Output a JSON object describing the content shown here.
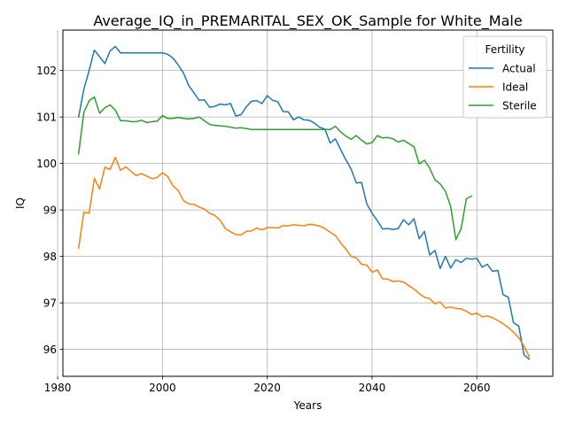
{
  "chart_data": {
    "type": "line",
    "title": "Average_IQ_in_PREMARITAL_SEX_OK_Sample for White_Male",
    "xlabel": "Years",
    "ylabel": "IQ",
    "xlim": [
      1981,
      2074.5
    ],
    "ylim": [
      95.42,
      102.87
    ],
    "xticks": [
      1980,
      2000,
      2020,
      2040,
      2060
    ],
    "yticks": [
      96,
      97,
      98,
      99,
      100,
      101,
      102
    ],
    "grid": true,
    "legend": {
      "title": "Fertility",
      "placement": "top-right"
    },
    "series": [
      {
        "name": "Actual",
        "color": "#1f77b4",
        "x": [
          1984,
          1985,
          1986,
          1987,
          1988,
          1989,
          1990,
          1991,
          1992,
          1993,
          1994,
          1995,
          1996,
          1997,
          1998,
          1999,
          2000,
          2001,
          2002,
          2003,
          2004,
          2005,
          2006,
          2007,
          2008,
          2009,
          2010,
          2011,
          2012,
          2013,
          2014,
          2015,
          2016,
          2017,
          2018,
          2019,
          2020,
          2021,
          2022,
          2023,
          2024,
          2025,
          2026,
          2027,
          2028,
          2029,
          2030,
          2031,
          2032,
          2033,
          2034,
          2035,
          2036,
          2037,
          2038,
          2039,
          2040,
          2041,
          2042,
          2043,
          2044,
          2045,
          2046,
          2047,
          2048,
          2049,
          2050,
          2051,
          2052,
          2053,
          2054,
          2055,
          2056,
          2057,
          2058,
          2059,
          2060,
          2061,
          2062,
          2063,
          2064,
          2065,
          2066,
          2067,
          2068,
          2069,
          2070
        ],
        "y": [
          101.0,
          101.6,
          102.0,
          102.44,
          102.3,
          102.15,
          102.42,
          102.52,
          102.38,
          102.38,
          102.38,
          102.38,
          102.38,
          102.38,
          102.38,
          102.38,
          102.38,
          102.35,
          102.27,
          102.12,
          101.95,
          101.68,
          101.52,
          101.36,
          101.37,
          101.21,
          101.23,
          101.28,
          101.26,
          101.29,
          101.02,
          101.05,
          101.22,
          101.34,
          101.35,
          101.29,
          101.46,
          101.36,
          101.33,
          101.12,
          101.11,
          100.94,
          101.0,
          100.94,
          100.93,
          100.87,
          100.78,
          100.74,
          100.44,
          100.53,
          100.3,
          100.08,
          99.88,
          99.58,
          99.59,
          99.13,
          98.93,
          98.77,
          98.59,
          98.6,
          98.58,
          98.6,
          98.79,
          98.68,
          98.81,
          98.38,
          98.54,
          98.03,
          98.13,
          97.74,
          98.0,
          97.75,
          97.93,
          97.87,
          97.96,
          97.94,
          97.96,
          97.77,
          97.83,
          97.68,
          97.7,
          97.18,
          97.12,
          96.57,
          96.5,
          95.88,
          95.79
        ]
      },
      {
        "name": "Ideal",
        "color": "#ff7f0e",
        "x": [
          1984,
          1985,
          1986,
          1987,
          1988,
          1989,
          1990,
          1991,
          1992,
          1993,
          1994,
          1995,
          1996,
          1997,
          1998,
          1999,
          2000,
          2001,
          2002,
          2003,
          2004,
          2005,
          2006,
          2007,
          2008,
          2009,
          2010,
          2011,
          2012,
          2013,
          2014,
          2015,
          2016,
          2017,
          2018,
          2019,
          2020,
          2021,
          2022,
          2023,
          2024,
          2025,
          2026,
          2027,
          2028,
          2029,
          2030,
          2031,
          2032,
          2033,
          2034,
          2035,
          2036,
          2037,
          2038,
          2039,
          2040,
          2041,
          2042,
          2043,
          2044,
          2045,
          2046,
          2047,
          2048,
          2049,
          2050,
          2051,
          2052,
          2053,
          2054,
          2055,
          2056,
          2057,
          2058,
          2059,
          2060,
          2061,
          2062,
          2063,
          2064,
          2065,
          2066,
          2067,
          2068,
          2069,
          2070
        ],
        "y": [
          98.18,
          98.95,
          98.93,
          99.68,
          99.45,
          99.92,
          99.87,
          100.13,
          99.85,
          99.93,
          99.83,
          99.74,
          99.78,
          99.73,
          99.67,
          99.7,
          99.8,
          99.72,
          99.52,
          99.42,
          99.2,
          99.13,
          99.12,
          99.06,
          99.02,
          98.93,
          98.88,
          98.78,
          98.6,
          98.53,
          98.47,
          98.46,
          98.54,
          98.55,
          98.61,
          98.57,
          98.62,
          98.62,
          98.61,
          98.66,
          98.66,
          98.68,
          98.67,
          98.66,
          98.69,
          98.68,
          98.65,
          98.6,
          98.52,
          98.45,
          98.29,
          98.16,
          98.0,
          97.97,
          97.83,
          97.81,
          97.66,
          97.71,
          97.52,
          97.51,
          97.46,
          97.47,
          97.45,
          97.37,
          97.3,
          97.2,
          97.12,
          97.09,
          96.98,
          97.02,
          96.89,
          96.91,
          96.88,
          96.87,
          96.82,
          96.75,
          96.78,
          96.7,
          96.72,
          96.68,
          96.62,
          96.55,
          96.47,
          96.37,
          96.25,
          96.07,
          95.84
        ]
      },
      {
        "name": "Sterile",
        "color": "#2ca02c",
        "x": [
          1984,
          1985,
          1986,
          1987,
          1988,
          1989,
          1990,
          1991,
          1992,
          1993,
          1994,
          1995,
          1996,
          1997,
          1998,
          1999,
          2000,
          2001,
          2002,
          2003,
          2004,
          2005,
          2006,
          2007,
          2008,
          2009,
          2010,
          2011,
          2012,
          2013,
          2014,
          2015,
          2016,
          2017,
          2018,
          2019,
          2020,
          2021,
          2022,
          2023,
          2024,
          2025,
          2026,
          2027,
          2028,
          2029,
          2030,
          2031,
          2032,
          2033,
          2034,
          2035,
          2036,
          2037,
          2038,
          2039,
          2040,
          2041,
          2042,
          2043,
          2044,
          2045,
          2046,
          2047,
          2048,
          2049,
          2050,
          2051,
          2052,
          2053,
          2054,
          2055,
          2056,
          2057,
          2058,
          2059
        ],
        "y": [
          100.21,
          101.1,
          101.35,
          101.43,
          101.08,
          101.2,
          101.26,
          101.15,
          100.92,
          100.92,
          100.9,
          100.9,
          100.93,
          100.88,
          100.9,
          100.91,
          101.03,
          100.97,
          100.97,
          100.99,
          100.97,
          100.96,
          100.97,
          101.0,
          100.92,
          100.84,
          100.82,
          100.81,
          100.8,
          100.78,
          100.76,
          100.77,
          100.75,
          100.73,
          100.73,
          100.73,
          100.73,
          100.73,
          100.73,
          100.73,
          100.73,
          100.73,
          100.73,
          100.73,
          100.73,
          100.73,
          100.73,
          100.73,
          100.73,
          100.8,
          100.68,
          100.59,
          100.52,
          100.6,
          100.5,
          100.42,
          100.45,
          100.6,
          100.55,
          100.56,
          100.53,
          100.46,
          100.5,
          100.43,
          100.36,
          99.99,
          100.07,
          99.9,
          99.65,
          99.56,
          99.4,
          99.08,
          98.36,
          98.6,
          99.24,
          99.3
        ]
      }
    ]
  }
}
